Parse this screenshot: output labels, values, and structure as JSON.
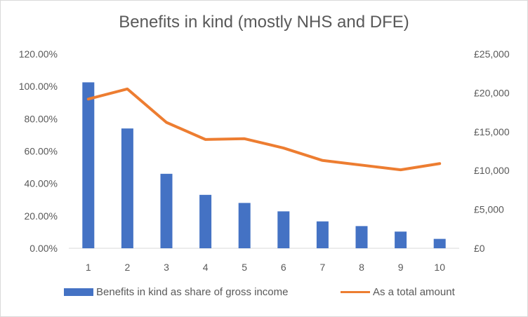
{
  "chart_data": {
    "type": "bar",
    "title": "Benefits in kind (mostly NHS and DFE)",
    "categories": [
      "1",
      "2",
      "3",
      "4",
      "5",
      "6",
      "7",
      "8",
      "9",
      "10"
    ],
    "series": [
      {
        "name": "Benefits in kind as share of gross income",
        "type": "bar",
        "axis": "left",
        "color": "#4472C4",
        "values": [
          1.025,
          0.74,
          0.46,
          0.33,
          0.28,
          0.228,
          0.166,
          0.137,
          0.103,
          0.058
        ]
      },
      {
        "name": "As a total amount",
        "type": "line",
        "axis": "right",
        "color": "#ED7D31",
        "values": [
          19200,
          20500,
          16200,
          14000,
          14100,
          12900,
          11300,
          10700,
          10100,
          10900
        ]
      }
    ],
    "y_left": {
      "min": 0,
      "max": 1.2,
      "ticks": [
        0,
        0.2,
        0.4,
        0.6,
        0.8,
        1.0,
        1.2
      ],
      "tick_labels": [
        "0.00%",
        "20.00%",
        "40.00%",
        "60.00%",
        "80.00%",
        "100.00%",
        "120.00%"
      ]
    },
    "y_right": {
      "min": 0,
      "max": 25000,
      "ticks": [
        0,
        5000,
        10000,
        15000,
        20000,
        25000
      ],
      "tick_labels": [
        "£0",
        "£5,000",
        "£10,000",
        "£15,000",
        "£20,000",
        "£25,000"
      ]
    },
    "grid": false,
    "legend": "bottom"
  }
}
